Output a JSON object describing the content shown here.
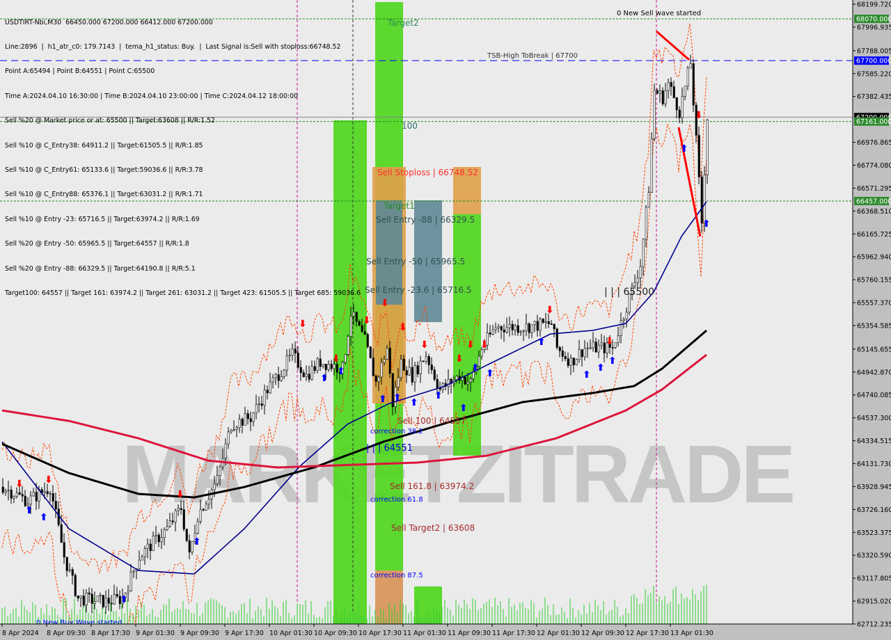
{
  "header": {
    "symbol_line": "USDTIRT-Nbi,M30  66450.000 67200.000 66412.000 67200.000",
    "lines": [
      "Line:2896  |  h1_atr_c0: 179.7143  |  tema_h1_status: Buy.  |  Last Signal is:Sell with stoploss:66748.52",
      "Point A:65494 | Point B:64551 | Point C:65500",
      "Time A:2024.04.10 16:30:00 | Time B:2024.04.10 23:00:00 | Time C:2024.04.12 18:00:00",
      "Sell %20 @ Market price or at: 65500 || Target:63608 || R/R:1.52",
      "Sell %10 @ C_Entry38: 64911.2 || Target:61505.5 || R/R:1.85",
      "Sell %10 @ C_Entry61: 65133.6 || Target:59036.6 || R/R:3.78",
      "Sell %10 @ C_Entry88: 65376.1 || Target:63031.2 || R/R:1.71",
      "Sell %10 @ Entry -23: 65716.5 || Target:63974.2 || R/R:1.69",
      "Sell %20 @ Entry -50: 65965.5 || Target:64557 || R/R:1.8",
      "Sell %20 @ Entry -88: 66329.5 || Target:64190.8 || R/R:5.1",
      "Target100: 64557 || Target 161: 63974.2 || Target 261: 63031.2 || Target 423: 61505.5 || Target 685: 59036.6"
    ]
  },
  "chart_labels": {
    "tsb": "TSB-High ToBreak | 67700",
    "target2": "Target2",
    "hundred": "100",
    "sell_stoploss": "Sell Stoploss | 66748.52",
    "target1": "Target1",
    "entry88": "Sell Entry -88 | 66329.5",
    "entry50": "Sell Entry -50 | 65965.5",
    "entry236": "Sell Entry -23.6 | 65716.5",
    "sell100": "Sell 100 | 64557",
    "correction382": "correction 38.2",
    "pointb": "| | | 64551",
    "sell1618": "Sell 161.8 | 63974.2",
    "correction618": "correction 61.8",
    "sell_target2": "Sell Target2 | 63608",
    "correction875": "correction 87.5",
    "pointc": "| | | 65500",
    "new_sell": "0 New Sell wave started",
    "new_buy": "0 New Buy Wave started",
    "watermark": "MARKETZITRADE"
  },
  "colors": {
    "background": "#c0c0c0",
    "plot_bg": "#ebebeb",
    "zone_green": "#4cd61a",
    "zone_orange": "#e0a04a",
    "zone_slate": "#5f8a96",
    "ma_fast": "#00008b",
    "ma_mid": "#000000",
    "ma_slow": "#dc143c",
    "envelope": "#ff4500",
    "buy_arrow": "#0000ff",
    "sell_arrow": "#ff0000"
  },
  "chart_data": {
    "type": "candlestick",
    "timeframe": "M30",
    "ylim": [
      62712.235,
      68199.72
    ],
    "y_ticks": [
      "68199.720",
      "67996.935",
      "67788.005",
      "67585.220",
      "67382.435",
      "66976.865",
      "66774.080",
      "66571.295",
      "66368.510",
      "66165.725",
      "65962.940",
      "65760.155",
      "65557.370",
      "65354.585",
      "65145.655",
      "64942.870",
      "64740.085",
      "64537.300",
      "64334.515",
      "64131.730",
      "63928.945",
      "63726.160",
      "63523.375",
      "63320.590",
      "63117.805",
      "62915.020",
      "62712.235"
    ],
    "x_ticks": [
      "8 Apr 2024",
      "8 Apr 09:30",
      "8 Apr 17:30",
      "9 Apr 01:30",
      "9 Apr 09:30",
      "9 Apr 17:30",
      "10 Apr 01:30",
      "10 Apr 09:30",
      "10 Apr 17:30",
      "11 Apr 01:30",
      "11 Apr 09:30",
      "11 Apr 17:30",
      "12 Apr 01:30",
      "12 Apr 09:30",
      "12 Apr 17:30",
      "13 Apr 01:30"
    ],
    "last_ohlc": {
      "open": 66450,
      "high": 67200,
      "low": 66412,
      "close": 67200
    },
    "price_path": [
      [
        0,
        63925
      ],
      [
        9,
        63802
      ],
      [
        17,
        63925
      ],
      [
        22,
        63309
      ],
      [
        27,
        62940
      ],
      [
        37,
        62909
      ],
      [
        43,
        62940
      ],
      [
        49,
        63309
      ],
      [
        59,
        63556
      ],
      [
        64,
        63741
      ],
      [
        67,
        63309
      ],
      [
        70,
        63679
      ],
      [
        77,
        63987
      ],
      [
        82,
        64480
      ],
      [
        89,
        64541
      ],
      [
        95,
        64788
      ],
      [
        104,
        65096
      ],
      [
        109,
        64911
      ],
      [
        114,
        65034
      ],
      [
        122,
        64972
      ],
      [
        125,
        65465
      ],
      [
        130,
        65219
      ],
      [
        134,
        64849
      ],
      [
        138,
        65157
      ],
      [
        140,
        64664
      ],
      [
        143,
        65034
      ],
      [
        147,
        64911
      ],
      [
        152,
        65096
      ],
      [
        157,
        64788
      ],
      [
        164,
        64911
      ],
      [
        168,
        64849
      ],
      [
        172,
        65157
      ],
      [
        177,
        65342
      ],
      [
        187,
        65342
      ],
      [
        197,
        65373
      ],
      [
        199,
        65157
      ],
      [
        204,
        65034
      ],
      [
        209,
        65157
      ],
      [
        214,
        65157
      ],
      [
        219,
        65157
      ],
      [
        224,
        65527
      ],
      [
        229,
        65896
      ],
      [
        232,
        66574
      ],
      [
        234,
        67436
      ],
      [
        237,
        67374
      ],
      [
        239,
        67497
      ],
      [
        243,
        67251
      ],
      [
        247,
        67682
      ],
      [
        249,
        66985
      ],
      [
        251,
        66266
      ],
      [
        253,
        67200
      ]
    ],
    "series": [
      {
        "role": "ma-fast",
        "points": [
          [
            0,
            64326
          ],
          [
            24,
            63556
          ],
          [
            49,
            63186
          ],
          [
            69,
            63155
          ],
          [
            87,
            63556
          ],
          [
            107,
            64110
          ],
          [
            124,
            64480
          ],
          [
            139,
            64664
          ],
          [
            159,
            64818
          ],
          [
            174,
            65003
          ],
          [
            197,
            65280
          ],
          [
            212,
            65311
          ],
          [
            224,
            65373
          ],
          [
            234,
            65650
          ],
          [
            244,
            66143
          ],
          [
            253,
            66451
          ]
        ]
      },
      {
        "role": "ma-mid",
        "points": [
          [
            0,
            64307
          ],
          [
            24,
            64049
          ],
          [
            49,
            63864
          ],
          [
            69,
            63833
          ],
          [
            87,
            63925
          ],
          [
            112,
            64098
          ],
          [
            137,
            64326
          ],
          [
            162,
            64510
          ],
          [
            187,
            64677
          ],
          [
            212,
            64757
          ],
          [
            227,
            64819
          ],
          [
            237,
            64972
          ],
          [
            253,
            65311
          ]
        ]
      },
      {
        "role": "ma-slow",
        "points": [
          [
            0,
            64603
          ],
          [
            24,
            64510
          ],
          [
            49,
            64356
          ],
          [
            74,
            64159
          ],
          [
            99,
            64098
          ],
          [
            124,
            64120
          ],
          [
            149,
            64141
          ],
          [
            174,
            64202
          ],
          [
            199,
            64356
          ],
          [
            224,
            64603
          ],
          [
            237,
            64788
          ],
          [
            253,
            65096
          ]
        ]
      }
    ],
    "levels": [
      {
        "price": 68070,
        "label": "68070.000",
        "color": "#228b22",
        "style": "dotted"
      },
      {
        "price": 67700,
        "label": "67700.000",
        "color": "#0000ff",
        "style": "dashed"
      },
      {
        "price": 67200,
        "label": "67200.000",
        "color": "#000000",
        "style": "solid"
      },
      {
        "price": 67161,
        "label": "67161.000",
        "color": "#228b22",
        "style": "dotted"
      },
      {
        "price": 66457,
        "label": "66457.000",
        "color": "#228b22",
        "style": "dotted"
      }
    ]
  }
}
